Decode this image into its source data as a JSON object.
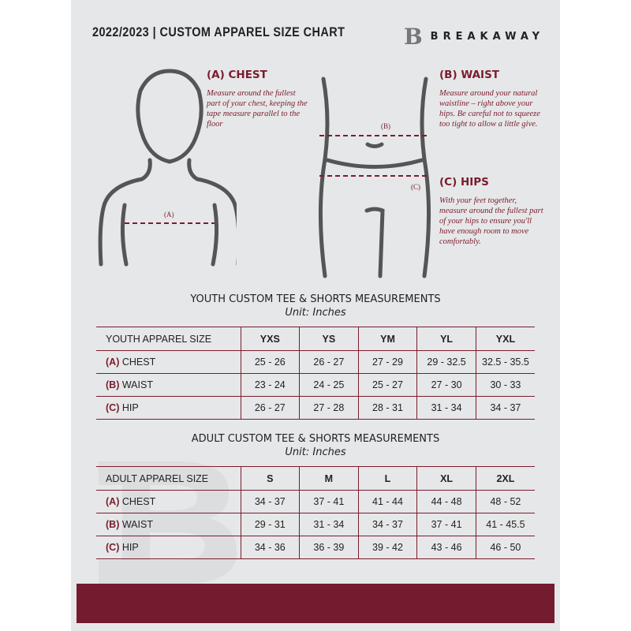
{
  "header": {
    "title": "2022/2023  |  CUSTOM APPAREL SIZE CHART",
    "brand": "BREAKAWAY",
    "logo_letter": "B"
  },
  "guides": {
    "chest": {
      "title": "(A) CHEST",
      "text": "Measure around the fullest part of your chest, keeping the tape measure parallel to the floor",
      "marker": "(A)"
    },
    "waist": {
      "title": "(B) WAIST",
      "text": "Measure around your natural waistline – right above your hips. Be careful not to squeeze too tight to allow a little give.",
      "marker": "(B)"
    },
    "hips": {
      "title": "(C) HIPS",
      "text": "With your feet together, measure around the fullest part of your hips to ensure you'll have enough room to move comfortably.",
      "marker": "(C)"
    }
  },
  "youth": {
    "title": "YOUTH CUSTOM TEE & SHORTS MEASUREMENTS",
    "unit": "Unit: Inches",
    "header_label": "YOUTH APPAREL SIZE",
    "sizes": [
      "YXS",
      "YS",
      "YM",
      "YL",
      "YXL"
    ],
    "rows": [
      {
        "letter": "(A)",
        "label": "CHEST",
        "values": [
          "25 - 26",
          "26 - 27",
          "27 - 29",
          "29 - 32.5",
          "32.5 - 35.5"
        ]
      },
      {
        "letter": "(B)",
        "label": "WAIST",
        "values": [
          "23 - 24",
          "24 - 25",
          "25 - 27",
          "27 - 30",
          "30 - 33"
        ]
      },
      {
        "letter": "(C)",
        "label": "HIP",
        "values": [
          "26 - 27",
          "27 - 28",
          "28 - 31",
          "31 - 34",
          "34 - 37"
        ]
      }
    ]
  },
  "adult": {
    "title": "ADULT CUSTOM TEE & SHORTS MEASUREMENTS",
    "unit": "Unit: Inches",
    "header_label": "ADULT APPAREL SIZE",
    "sizes": [
      "S",
      "M",
      "L",
      "XL",
      "2XL"
    ],
    "rows": [
      {
        "letter": "(A)",
        "label": "CHEST",
        "values": [
          "34 - 37",
          "37 - 41",
          "41 - 44",
          "44 - 48",
          "48 - 52"
        ]
      },
      {
        "letter": "(B)",
        "label": "WAIST",
        "values": [
          "29 - 31",
          "31 - 34",
          "34 - 37",
          "37 - 41",
          "41 - 45.5"
        ]
      },
      {
        "letter": "(C)",
        "label": "HIP",
        "values": [
          "34 - 36",
          "36 - 39",
          "39 - 42",
          "43 - 46",
          "46 - 50"
        ]
      }
    ]
  },
  "colors": {
    "accent": "#741b30",
    "background": "#e6e7e8"
  }
}
